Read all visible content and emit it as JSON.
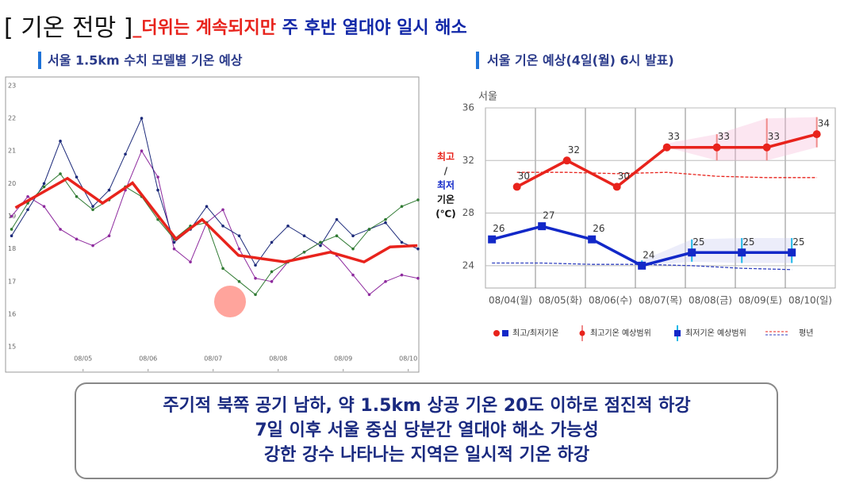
{
  "slide": {
    "title_bracket": "[ 기온 전망 ]",
    "title_red": "_더위는 계속되지만",
    "title_blue": " 주 후반 열대야 일시 해소"
  },
  "chart_data": [
    {
      "type": "line",
      "title": "서울 1.5km 수치 모델별  기온 예상",
      "xlim": [
        3.82,
        10.15
      ],
      "ylim": [
        14.25,
        23.24
      ],
      "xticks": [
        {
          "value": 5,
          "label": "08/05"
        },
        {
          "value": 6,
          "label": "08/06"
        },
        {
          "value": 7,
          "label": "08/07"
        },
        {
          "value": 8,
          "label": "08/08"
        },
        {
          "value": 9,
          "label": "08/09"
        },
        {
          "value": 10,
          "label": "08/10"
        }
      ],
      "yticks": [
        15,
        16,
        17,
        18,
        19,
        20,
        21,
        22,
        23
      ],
      "series": [
        {
          "color": "#8e2a9e",
          "x": [
            3.9,
            4.15,
            4.4,
            4.65,
            4.9,
            5.15,
            5.4,
            5.65,
            5.9,
            6.15,
            6.4,
            6.65,
            6.9,
            7.15,
            7.4,
            7.65,
            7.9,
            8.15,
            8.4,
            8.65,
            8.9,
            9.15,
            9.4,
            9.65,
            9.9,
            10.15
          ],
          "values": [
            19.0,
            19.6,
            19.3,
            18.6,
            18.3,
            18.1,
            18.4,
            19.8,
            21.0,
            20.2,
            18.0,
            17.6,
            18.8,
            19.2,
            18.0,
            17.1,
            17.0,
            17.6,
            17.9,
            18.2,
            17.8,
            17.2,
            16.6,
            17.0,
            17.2,
            17.1
          ]
        },
        {
          "color": "#1c2a7a",
          "x": [
            3.9,
            4.15,
            4.4,
            4.65,
            4.9,
            5.15,
            5.4,
            5.65,
            5.9,
            6.15,
            6.4,
            6.65,
            6.9,
            7.15,
            7.4,
            7.65,
            7.9,
            8.15,
            8.4,
            8.65,
            8.9,
            9.15,
            9.4,
            9.65,
            9.9,
            10.15
          ],
          "values": [
            18.4,
            19.2,
            20.0,
            21.3,
            20.2,
            19.3,
            19.8,
            20.9,
            22.0,
            19.8,
            18.2,
            18.6,
            19.3,
            18.7,
            18.4,
            17.5,
            18.2,
            18.7,
            18.4,
            18.1,
            18.9,
            18.4,
            18.6,
            18.8,
            18.2,
            18.0
          ]
        },
        {
          "color": "#2f7a32",
          "x": [
            3.9,
            4.15,
            4.4,
            4.65,
            4.9,
            5.15,
            5.4,
            5.65,
            5.9,
            6.15,
            6.4,
            6.65,
            6.9,
            7.15,
            7.4,
            7.65,
            7.9,
            8.15,
            8.4,
            8.65,
            8.9,
            9.15,
            9.4,
            9.65,
            9.9,
            10.15
          ],
          "values": [
            18.6,
            19.4,
            19.9,
            20.3,
            19.6,
            19.2,
            19.5,
            19.9,
            19.6,
            18.9,
            18.3,
            18.7,
            18.8,
            17.4,
            17.0,
            16.6,
            17.3,
            17.6,
            17.9,
            18.2,
            18.4,
            18.0,
            18.6,
            18.9,
            19.3,
            19.5
          ]
        },
        {
          "color": "#e8231c",
          "width": 3.5,
          "x": [
            3.96,
            4.76,
            5.3,
            5.76,
            6.43,
            6.83,
            7.39,
            8.1,
            8.8,
            9.32,
            9.72,
            10.14
          ],
          "values": [
            19.26,
            20.16,
            19.4,
            20.02,
            18.3,
            18.9,
            17.8,
            17.6,
            17.9,
            17.6,
            18.06,
            18.1
          ]
        }
      ]
    },
    {
      "type": "line",
      "title": "서울 기온 예상(4일(월) 6시 발표)",
      "unit_label": "서울",
      "y_label": [
        "최고",
        "/",
        "최저",
        "기온",
        "(℃)"
      ],
      "categories": [
        "08/04(월)",
        "08/05(화)",
        "08/06(수)",
        "08/07(목)",
        "08/08(금)",
        "08/09(토)",
        "08/10(일)"
      ],
      "ylim": [
        22.3,
        36
      ],
      "yticks": [
        24,
        28,
        32,
        36
      ],
      "grid": true,
      "max": {
        "color": "#e8231c",
        "values": [
          30,
          32,
          30,
          33,
          33,
          33,
          34
        ],
        "range_low": [
          null,
          null,
          null,
          33,
          32,
          32,
          33
        ],
        "range_high": [
          null,
          null,
          null,
          33.3,
          34,
          35.2,
          35.3
        ]
      },
      "min": {
        "color": "#1228c8",
        "values": [
          26,
          27,
          26,
          24,
          25,
          25,
          25
        ],
        "range_low": [
          null,
          null,
          null,
          24,
          24.3,
          24.2,
          24.2
        ],
        "range_high": [
          null,
          null,
          null,
          24.4,
          26,
          26.1,
          26.1
        ]
      },
      "normal": {
        "max_color": "#e8231c",
        "min_color": "#3040c0",
        "max": [
          31.1,
          31.1,
          31.0,
          31.1,
          30.8,
          30.7,
          30.7
        ],
        "min": [
          24.2,
          24.2,
          24.1,
          24.1,
          24.0,
          23.8,
          23.7
        ]
      },
      "legend": [
        "최고/최저기온",
        "최고기온 예상범위",
        "최저기온 예상범위",
        "평년"
      ]
    }
  ],
  "summary": {
    "lines": [
      "주기적 북쪽 공기 남하, 약 1.5km 상공 기온 20도 이하로 점진적 하강",
      "7일 이후 서울 중심 당분간 열대야 해소 가능성",
      "강한 강수 나타나는 지역은 일시적 기온 하강"
    ]
  }
}
